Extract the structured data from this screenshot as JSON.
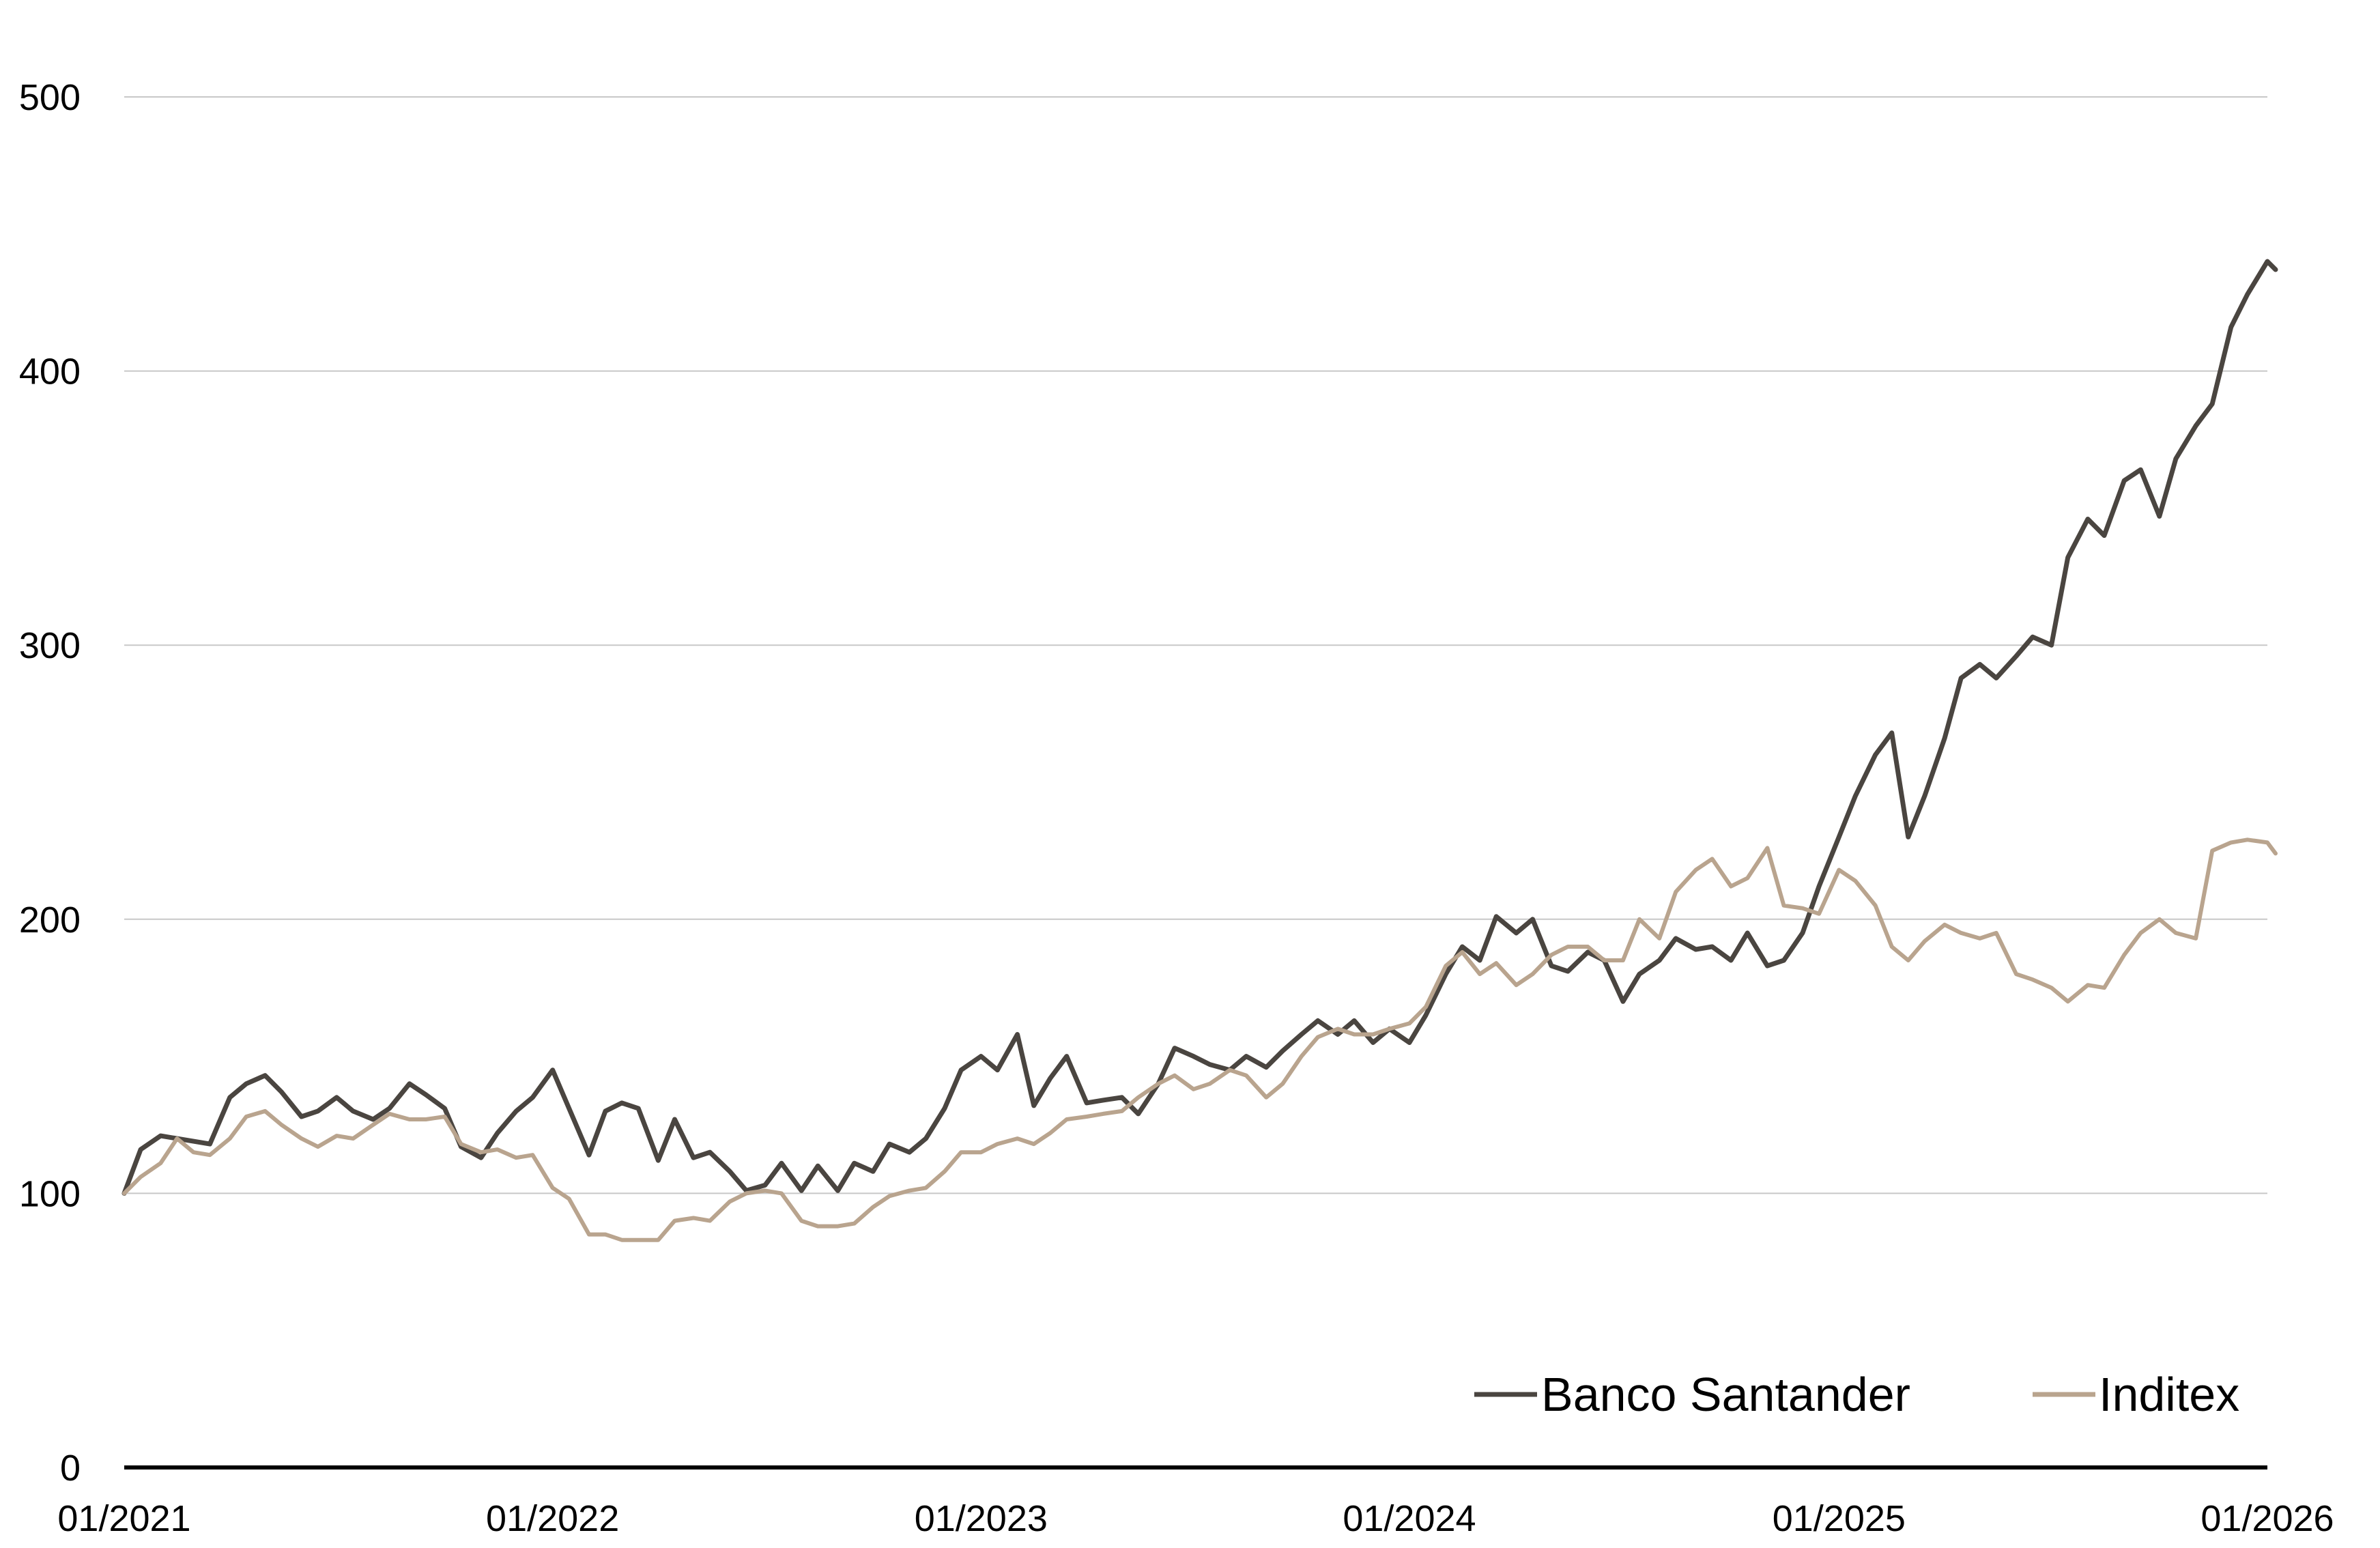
{
  "chart_data": {
    "type": "line",
    "title": "",
    "xlabel": "",
    "ylabel": "",
    "xlim": [
      "01/2021",
      "01/2026"
    ],
    "ylim": [
      0,
      500
    ],
    "x_ticks": [
      "01/2021",
      "01/2022",
      "01/2023",
      "01/2024",
      "01/2025",
      "01/2026"
    ],
    "y_ticks": [
      0,
      100,
      200,
      300,
      400,
      500
    ],
    "grid": true,
    "legend": "bottom-right",
    "series": [
      {
        "name": "Banco Santander",
        "color": "#4a4540",
        "points": [
          [
            "2021-01-01",
            100
          ],
          [
            "2021-01-15",
            116
          ],
          [
            "2021-02-01",
            121
          ],
          [
            "2021-02-15",
            120
          ],
          [
            "2021-03-01",
            119
          ],
          [
            "2021-03-15",
            118
          ],
          [
            "2021-04-01",
            135
          ],
          [
            "2021-04-15",
            140
          ],
          [
            "2021-05-01",
            143
          ],
          [
            "2021-05-15",
            137
          ],
          [
            "2021-06-01",
            128
          ],
          [
            "2021-06-15",
            130
          ],
          [
            "2021-07-01",
            135
          ],
          [
            "2021-07-15",
            130
          ],
          [
            "2021-08-01",
            127
          ],
          [
            "2021-08-15",
            131
          ],
          [
            "2021-09-01",
            140
          ],
          [
            "2021-09-15",
            136
          ],
          [
            "2021-10-01",
            131
          ],
          [
            "2021-10-15",
            117
          ],
          [
            "2021-11-01",
            113
          ],
          [
            "2021-11-15",
            122
          ],
          [
            "2021-12-01",
            130
          ],
          [
            "2021-12-15",
            135
          ],
          [
            "2022-01-01",
            145
          ],
          [
            "2022-01-15",
            131
          ],
          [
            "2022-02-01",
            114
          ],
          [
            "2022-02-15",
            130
          ],
          [
            "2022-03-01",
            133
          ],
          [
            "2022-03-15",
            131
          ],
          [
            "2022-04-01",
            112
          ],
          [
            "2022-04-15",
            127
          ],
          [
            "2022-05-01",
            113
          ],
          [
            "2022-05-15",
            115
          ],
          [
            "2022-06-01",
            108
          ],
          [
            "2022-06-15",
            101
          ],
          [
            "2022-07-01",
            103
          ],
          [
            "2022-07-15",
            111
          ],
          [
            "2022-08-01",
            101
          ],
          [
            "2022-08-15",
            110
          ],
          [
            "2022-09-01",
            101
          ],
          [
            "2022-09-15",
            111
          ],
          [
            "2022-10-01",
            108
          ],
          [
            "2022-10-15",
            118
          ],
          [
            "2022-11-01",
            115
          ],
          [
            "2022-11-15",
            120
          ],
          [
            "2022-12-01",
            131
          ],
          [
            "2022-12-15",
            145
          ],
          [
            "2023-01-01",
            150
          ],
          [
            "2023-01-15",
            145
          ],
          [
            "2023-02-01",
            158
          ],
          [
            "2023-02-15",
            132
          ],
          [
            "2023-03-01",
            142
          ],
          [
            "2023-03-15",
            150
          ],
          [
            "2023-04-01",
            133
          ],
          [
            "2023-04-15",
            134
          ],
          [
            "2023-05-01",
            135
          ],
          [
            "2023-05-15",
            129
          ],
          [
            "2023-06-01",
            140
          ],
          [
            "2023-06-15",
            153
          ],
          [
            "2023-07-01",
            150
          ],
          [
            "2023-07-15",
            147
          ],
          [
            "2023-08-01",
            145
          ],
          [
            "2023-08-15",
            150
          ],
          [
            "2023-09-01",
            146
          ],
          [
            "2023-09-15",
            152
          ],
          [
            "2023-10-01",
            158
          ],
          [
            "2023-10-15",
            163
          ],
          [
            "2023-11-01",
            158
          ],
          [
            "2023-11-15",
            163
          ],
          [
            "2023-12-01",
            155
          ],
          [
            "2023-12-15",
            160
          ],
          [
            "2024-01-01",
            155
          ],
          [
            "2024-01-15",
            165
          ],
          [
            "2024-02-01",
            180
          ],
          [
            "2024-02-15",
            190
          ],
          [
            "2024-03-01",
            185
          ],
          [
            "2024-03-15",
            201
          ],
          [
            "2024-04-01",
            195
          ],
          [
            "2024-04-15",
            200
          ],
          [
            "2024-05-01",
            183
          ],
          [
            "2024-05-15",
            181
          ],
          [
            "2024-06-01",
            188
          ],
          [
            "2024-06-15",
            185
          ],
          [
            "2024-07-01",
            170
          ],
          [
            "2024-07-15",
            180
          ],
          [
            "2024-08-01",
            185
          ],
          [
            "2024-08-15",
            193
          ],
          [
            "2024-09-01",
            189
          ],
          [
            "2024-09-15",
            190
          ],
          [
            "2024-10-01",
            185
          ],
          [
            "2024-10-15",
            195
          ],
          [
            "2024-11-01",
            183
          ],
          [
            "2024-11-15",
            185
          ],
          [
            "2024-12-01",
            195
          ],
          [
            "2024-12-15",
            212
          ],
          [
            "2025-01-01",
            230
          ],
          [
            "2025-01-15",
            245
          ],
          [
            "2025-02-01",
            260
          ],
          [
            "2025-02-15",
            268
          ],
          [
            "2025-03-01",
            230
          ],
          [
            "2025-03-15",
            245
          ],
          [
            "2025-04-01",
            266
          ],
          [
            "2025-04-15",
            288
          ],
          [
            "2025-05-01",
            293
          ],
          [
            "2025-05-15",
            288
          ],
          [
            "2025-06-01",
            296
          ],
          [
            "2025-06-15",
            303
          ],
          [
            "2025-07-01",
            300
          ],
          [
            "2025-07-15",
            332
          ],
          [
            "2025-08-01",
            346
          ],
          [
            "2025-08-15",
            340
          ],
          [
            "2025-09-01",
            360
          ],
          [
            "2025-09-15",
            364
          ],
          [
            "2025-10-01",
            347
          ],
          [
            "2025-10-15",
            368
          ],
          [
            "2025-11-01",
            380
          ],
          [
            "2025-11-15",
            388
          ],
          [
            "2025-12-01",
            416
          ],
          [
            "2025-12-15",
            428
          ],
          [
            "2026-01-01",
            440
          ],
          [
            "2026-01-08",
            437
          ]
        ]
      },
      {
        "name": "Inditex",
        "color": "#b9a48e",
        "points": [
          [
            "2021-01-01",
            100
          ],
          [
            "2021-01-15",
            106
          ],
          [
            "2021-02-01",
            111
          ],
          [
            "2021-02-15",
            120
          ],
          [
            "2021-03-01",
            115
          ],
          [
            "2021-03-15",
            114
          ],
          [
            "2021-04-01",
            120
          ],
          [
            "2021-04-15",
            128
          ],
          [
            "2021-05-01",
            130
          ],
          [
            "2021-05-15",
            125
          ],
          [
            "2021-06-01",
            120
          ],
          [
            "2021-06-15",
            117
          ],
          [
            "2021-07-01",
            121
          ],
          [
            "2021-07-15",
            120
          ],
          [
            "2021-08-01",
            125
          ],
          [
            "2021-08-15",
            129
          ],
          [
            "2021-09-01",
            127
          ],
          [
            "2021-09-15",
            127
          ],
          [
            "2021-10-01",
            128
          ],
          [
            "2021-10-15",
            118
          ],
          [
            "2021-11-01",
            115
          ],
          [
            "2021-11-15",
            116
          ],
          [
            "2021-12-01",
            113
          ],
          [
            "2021-12-15",
            114
          ],
          [
            "2022-01-01",
            102
          ],
          [
            "2022-01-15",
            98
          ],
          [
            "2022-02-01",
            85
          ],
          [
            "2022-02-15",
            85
          ],
          [
            "2022-03-01",
            83
          ],
          [
            "2022-03-15",
            83
          ],
          [
            "2022-04-01",
            83
          ],
          [
            "2022-04-15",
            90
          ],
          [
            "2022-05-01",
            91
          ],
          [
            "2022-05-15",
            90
          ],
          [
            "2022-06-01",
            97
          ],
          [
            "2022-06-15",
            100
          ],
          [
            "2022-07-01",
            101
          ],
          [
            "2022-07-15",
            100
          ],
          [
            "2022-08-01",
            90
          ],
          [
            "2022-08-15",
            88
          ],
          [
            "2022-09-01",
            88
          ],
          [
            "2022-09-15",
            89
          ],
          [
            "2022-10-01",
            95
          ],
          [
            "2022-10-15",
            99
          ],
          [
            "2022-11-01",
            101
          ],
          [
            "2022-11-15",
            102
          ],
          [
            "2022-12-01",
            108
          ],
          [
            "2022-12-15",
            115
          ],
          [
            "2023-01-01",
            115
          ],
          [
            "2023-01-15",
            118
          ],
          [
            "2023-02-01",
            120
          ],
          [
            "2023-02-15",
            118
          ],
          [
            "2023-03-01",
            122
          ],
          [
            "2023-03-15",
            127
          ],
          [
            "2023-04-01",
            128
          ],
          [
            "2023-04-15",
            129
          ],
          [
            "2023-05-01",
            130
          ],
          [
            "2023-05-15",
            135
          ],
          [
            "2023-06-01",
            140
          ],
          [
            "2023-06-15",
            143
          ],
          [
            "2023-07-01",
            138
          ],
          [
            "2023-07-15",
            140
          ],
          [
            "2023-08-01",
            145
          ],
          [
            "2023-08-15",
            143
          ],
          [
            "2023-09-01",
            135
          ],
          [
            "2023-09-15",
            140
          ],
          [
            "2023-10-01",
            150
          ],
          [
            "2023-10-15",
            157
          ],
          [
            "2023-11-01",
            160
          ],
          [
            "2023-11-15",
            158
          ],
          [
            "2023-12-01",
            158
          ],
          [
            "2023-12-15",
            160
          ],
          [
            "2024-01-01",
            162
          ],
          [
            "2024-01-15",
            168
          ],
          [
            "2024-02-01",
            183
          ],
          [
            "2024-02-15",
            188
          ],
          [
            "2024-03-01",
            180
          ],
          [
            "2024-03-15",
            184
          ],
          [
            "2024-04-01",
            176
          ],
          [
            "2024-04-15",
            180
          ],
          [
            "2024-05-01",
            187
          ],
          [
            "2024-05-15",
            190
          ],
          [
            "2024-06-01",
            190
          ],
          [
            "2024-06-15",
            185
          ],
          [
            "2024-07-01",
            185
          ],
          [
            "2024-07-15",
            200
          ],
          [
            "2024-08-01",
            193
          ],
          [
            "2024-08-15",
            210
          ],
          [
            "2024-09-01",
            218
          ],
          [
            "2024-09-15",
            222
          ],
          [
            "2024-10-01",
            212
          ],
          [
            "2024-10-15",
            215
          ],
          [
            "2024-11-01",
            226
          ],
          [
            "2024-11-15",
            205
          ],
          [
            "2024-12-01",
            204
          ],
          [
            "2024-12-15",
            202
          ],
          [
            "2025-01-01",
            218
          ],
          [
            "2025-01-15",
            214
          ],
          [
            "2025-02-01",
            205
          ],
          [
            "2025-02-15",
            190
          ],
          [
            "2025-03-01",
            185
          ],
          [
            "2025-03-15",
            192
          ],
          [
            "2025-04-01",
            198
          ],
          [
            "2025-04-15",
            195
          ],
          [
            "2025-05-01",
            193
          ],
          [
            "2025-05-15",
            195
          ],
          [
            "2025-06-01",
            180
          ],
          [
            "2025-06-15",
            178
          ],
          [
            "2025-07-01",
            175
          ],
          [
            "2025-07-15",
            170
          ],
          [
            "2025-08-01",
            176
          ],
          [
            "2025-08-15",
            175
          ],
          [
            "2025-09-01",
            187
          ],
          [
            "2025-09-15",
            195
          ],
          [
            "2025-10-01",
            200
          ],
          [
            "2025-10-15",
            195
          ],
          [
            "2025-11-01",
            193
          ],
          [
            "2025-11-15",
            225
          ],
          [
            "2025-12-01",
            228
          ],
          [
            "2025-12-15",
            229
          ],
          [
            "2026-01-01",
            228
          ],
          [
            "2026-01-08",
            224
          ]
        ]
      }
    ]
  }
}
